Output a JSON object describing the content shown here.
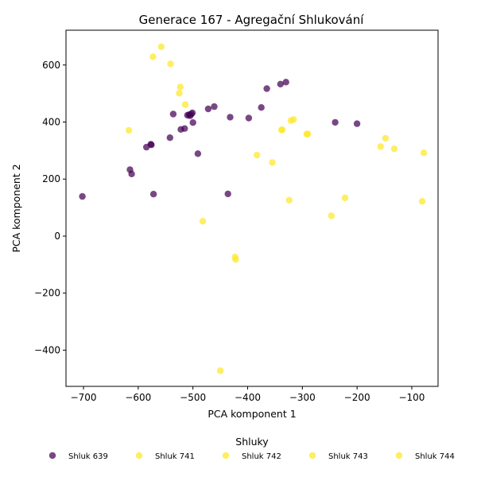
{
  "chart_data": {
    "type": "scatter",
    "title": "Generace 167 - Agregační Shlukování",
    "xlabel": "PCA komponent 1",
    "ylabel": "PCA komponent 2",
    "xlim": [
      -732,
      -52
    ],
    "ylim": [
      -527,
      722
    ],
    "xticks": [
      -700,
      -600,
      -500,
      -400,
      -300,
      -200,
      -100
    ],
    "xtick_labels": [
      "−700",
      "−600",
      "−500",
      "−400",
      "−300",
      "−200",
      "−100"
    ],
    "yticks": [
      -400,
      -200,
      0,
      200,
      400,
      600
    ],
    "ytick_labels": [
      "−400",
      "−200",
      "0",
      "200",
      "400",
      "600"
    ],
    "grid": false,
    "legend_title": "Shluky",
    "legend_position": "bottom",
    "series": [
      {
        "name": "Shluk 639",
        "color": "#440154",
        "points": [
          [
            -702,
            139
          ],
          [
            -615,
            233
          ],
          [
            -612,
            218
          ],
          [
            -585,
            312
          ],
          [
            -577,
            322
          ],
          [
            -576,
            320
          ],
          [
            -572,
            147
          ],
          [
            -542,
            345
          ],
          [
            -536,
            428
          ],
          [
            -522,
            374
          ],
          [
            -515,
            377
          ],
          [
            -510,
            424
          ],
          [
            -507,
            426
          ],
          [
            -505,
            422
          ],
          [
            -503,
            428
          ],
          [
            -501,
            432
          ],
          [
            -500,
            398
          ],
          [
            -491,
            289
          ],
          [
            -472,
            446
          ],
          [
            -461,
            454
          ],
          [
            -436,
            148
          ],
          [
            -432,
            417
          ],
          [
            -398,
            414
          ],
          [
            -375,
            451
          ],
          [
            -365,
            517
          ],
          [
            -340,
            533
          ],
          [
            -330,
            540
          ],
          [
            -240,
            399
          ],
          [
            -200,
            394
          ]
        ]
      },
      {
        "name": "Shluk 741",
        "color": "#fde725",
        "points": [
          [
            -617,
            371
          ],
          [
            -573,
            629
          ],
          [
            -558,
            664
          ],
          [
            -541,
            604
          ],
          [
            -525,
            501
          ],
          [
            -523,
            523
          ],
          [
            -514,
            461
          ],
          [
            -482,
            52
          ],
          [
            -450,
            -472
          ],
          [
            -423,
            -73
          ],
          [
            -422,
            -82
          ]
        ]
      },
      {
        "name": "Shluk 742",
        "color": "#fde725",
        "points": [
          [
            -383,
            284
          ],
          [
            -355,
            258
          ],
          [
            -338,
            372
          ],
          [
            -337,
            373
          ],
          [
            -324,
            126
          ],
          [
            -321,
            405
          ],
          [
            -316,
            409
          ]
        ]
      },
      {
        "name": "Shluk 743",
        "color": "#fde725",
        "points": [
          [
            -292,
            358
          ],
          [
            -290,
            358
          ],
          [
            -247,
            71
          ],
          [
            -222,
            134
          ]
        ]
      },
      {
        "name": "Shluk 744",
        "color": "#fde725",
        "points": [
          [
            -157,
            314
          ],
          [
            -148,
            343
          ],
          [
            -132,
            306
          ],
          [
            -81,
            122
          ],
          [
            -78,
            292
          ]
        ]
      }
    ]
  }
}
